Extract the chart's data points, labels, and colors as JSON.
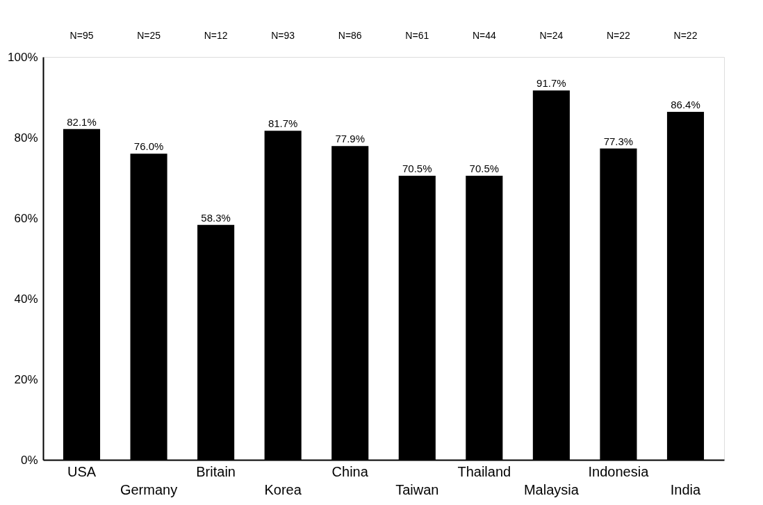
{
  "chart_data": {
    "type": "bar",
    "categories": [
      "USA",
      "Germany",
      "Britain",
      "Korea",
      "China",
      "Taiwan",
      "Thailand",
      "Malaysia",
      "Indonesia",
      "India"
    ],
    "values": [
      82.1,
      76.0,
      58.3,
      81.7,
      77.9,
      70.5,
      70.5,
      91.7,
      77.3,
      86.4
    ],
    "value_labels": [
      "82.1%",
      "76.0%",
      "58.3%",
      "81.7%",
      "77.9%",
      "70.5%",
      "70.5%",
      "91.7%",
      "77.3%",
      "86.4%"
    ],
    "color": "#000000",
    "ylim": [
      0,
      100
    ],
    "yticks": [
      {
        "value": 0,
        "label": "0%"
      },
      {
        "value": 20,
        "label": "20%"
      },
      {
        "value": 40,
        "label": "40%"
      },
      {
        "value": 60,
        "label": "60%"
      },
      {
        "value": 80,
        "label": "80%"
      },
      {
        "value": 100,
        "label": "100%"
      }
    ],
    "annotations": [
      "N=95",
      "N=25",
      "N=12",
      "N=93",
      "N=86",
      "N=61",
      "N=44",
      "N=24",
      "N=22",
      "N=22"
    ]
  }
}
